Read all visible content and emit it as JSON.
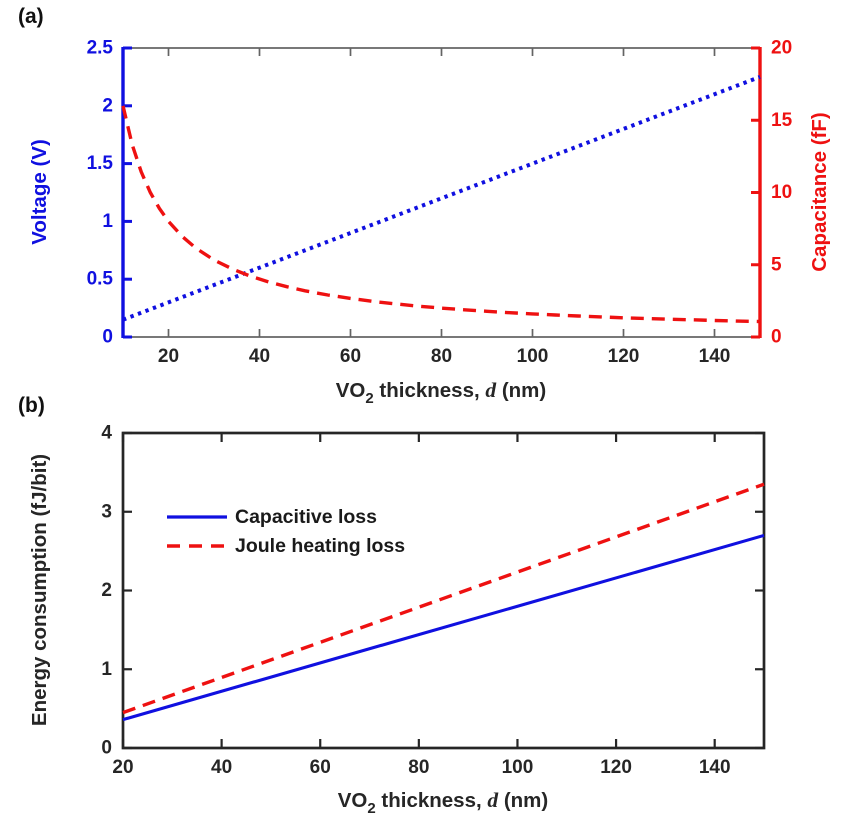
{
  "figure": {
    "background": "#ffffff",
    "accent_blue": "#1010e0",
    "accent_red": "#ee1111"
  },
  "chart_data": [
    {
      "id": "a",
      "type": "line",
      "panel_label": "(a)",
      "xlabel": {
        "prefix": "VO",
        "sub": "2",
        "mid": " thickness, ",
        "var": "d",
        "suffix": " (nm)"
      },
      "xlim": [
        10,
        150
      ],
      "xticks": [
        20,
        40,
        60,
        80,
        100,
        120,
        140
      ],
      "xtick_labels": [
        "20",
        "40",
        "60",
        "80",
        "100",
        "120",
        "140"
      ],
      "frame_color": "#646464",
      "tick_label_color": "#262626",
      "grid": false,
      "left_axis": {
        "label": "Voltage (V)",
        "color": "#1010e0",
        "lim": [
          0,
          2.5
        ],
        "ticks": [
          0,
          0.5,
          1,
          1.5,
          2,
          2.5
        ],
        "tick_labels": [
          "0",
          "0.5",
          "1",
          "1.5",
          "2",
          "2.5"
        ]
      },
      "right_axis": {
        "label": "Capacitance (fF)",
        "color": "#ee1111",
        "lim": [
          0,
          20
        ],
        "ticks": [
          0,
          5,
          10,
          15,
          20
        ],
        "tick_labels": [
          "0",
          "5",
          "10",
          "15",
          "20"
        ]
      },
      "series": [
        {
          "name": "voltage",
          "axis": "left",
          "color": "#1010e0",
          "style": "dotted",
          "x": [
            10,
            150
          ],
          "y": [
            0.15,
            2.25
          ]
        },
        {
          "name": "capacitance",
          "axis": "right",
          "color": "#ee1111",
          "style": "dashed",
          "x": [
            10,
            12,
            14,
            16,
            18,
            20,
            23,
            26,
            30,
            34,
            38,
            42,
            46,
            50,
            55,
            60,
            65,
            70,
            75,
            80,
            85,
            90,
            95,
            100,
            105,
            110,
            115,
            120,
            125,
            130,
            135,
            140,
            145,
            150
          ],
          "y": [
            16,
            13.33,
            11.43,
            10,
            8.89,
            8,
            6.96,
            6.15,
            5.33,
            4.71,
            4.21,
            3.81,
            3.48,
            3.2,
            2.91,
            2.67,
            2.46,
            2.29,
            2.13,
            2,
            1.88,
            1.78,
            1.68,
            1.6,
            1.52,
            1.45,
            1.39,
            1.33,
            1.28,
            1.23,
            1.19,
            1.14,
            1.1,
            1.07
          ]
        }
      ]
    },
    {
      "id": "b",
      "type": "line",
      "panel_label": "(b)",
      "xlabel": {
        "prefix": "VO",
        "sub": "2",
        "mid": " thickness, ",
        "var": "d",
        "suffix": " (nm)"
      },
      "ylabel": "Energy consumption (fJ/bit)",
      "xlim": [
        20,
        150
      ],
      "xticks": [
        20,
        40,
        60,
        80,
        100,
        120,
        140
      ],
      "xtick_labels": [
        "20",
        "40",
        "60",
        "80",
        "100",
        "120",
        "140"
      ],
      "ylim": [
        0,
        4
      ],
      "yticks": [
        0,
        1,
        2,
        3,
        4
      ],
      "ytick_labels": [
        "0",
        "1",
        "2",
        "3",
        "4"
      ],
      "frame_color": "#262626",
      "tick_label_color": "#262626",
      "grid": false,
      "legend": {
        "position": "upper-left",
        "border": false,
        "entries": [
          {
            "label": "Capacitive loss",
            "color": "#1010e0",
            "style": "solid"
          },
          {
            "label": "Joule heating loss",
            "color": "#ee1111",
            "style": "dashed"
          }
        ]
      },
      "series": [
        {
          "name": "capacitive-loss",
          "color": "#1010e0",
          "style": "solid",
          "x": [
            20,
            150
          ],
          "y": [
            0.36,
            2.7
          ]
        },
        {
          "name": "joule-heating-loss",
          "color": "#ee1111",
          "style": "dashed",
          "x": [
            20,
            150
          ],
          "y": [
            0.45,
            3.35
          ]
        }
      ]
    }
  ]
}
